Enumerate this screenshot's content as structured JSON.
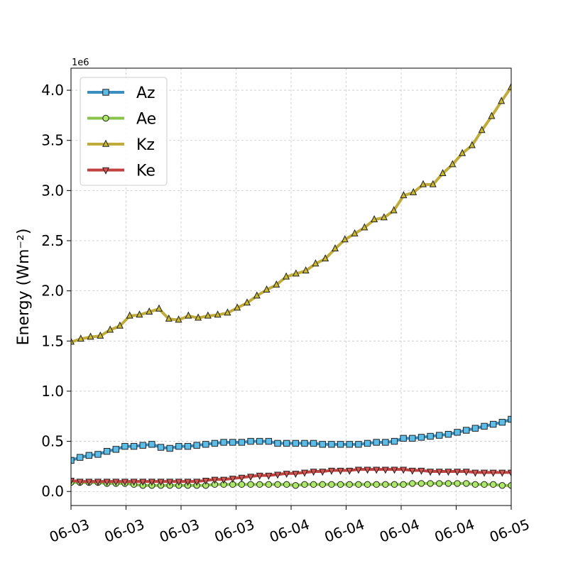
{
  "chart_data": {
    "type": "line",
    "ylabel": "Energy (Wm⁻²)",
    "y_offset_label": "1e6",
    "ylim": [
      -0.14,
      4.22
    ],
    "y_ticks": [
      0.0,
      0.5,
      1.0,
      1.5,
      2.0,
      2.5,
      3.0,
      3.5,
      4.0
    ],
    "y_tick_labels": [
      "0.0",
      "0.5",
      "1.0",
      "1.5",
      "2.0",
      "2.5",
      "3.0",
      "3.5",
      "4.0"
    ],
    "x_tick_labels": [
      "06-03",
      "06-03",
      "06-03",
      "06-03",
      "06-04",
      "06-04",
      "06-04",
      "06-04",
      "06-05"
    ],
    "grid": true,
    "legend_position": "top-left",
    "series": [
      {
        "name": "Az",
        "color": "#3b8fc0",
        "marker_fill": "#5bbde8",
        "marker": "square",
        "values": [
          0.31,
          0.34,
          0.36,
          0.37,
          0.4,
          0.42,
          0.45,
          0.45,
          0.46,
          0.47,
          0.44,
          0.43,
          0.45,
          0.45,
          0.46,
          0.47,
          0.48,
          0.49,
          0.49,
          0.49,
          0.5,
          0.5,
          0.5,
          0.48,
          0.48,
          0.48,
          0.48,
          0.48,
          0.47,
          0.47,
          0.47,
          0.47,
          0.47,
          0.48,
          0.49,
          0.49,
          0.5,
          0.53,
          0.53,
          0.54,
          0.55,
          0.56,
          0.57,
          0.59,
          0.61,
          0.63,
          0.65,
          0.67,
          0.69,
          0.72
        ]
      },
      {
        "name": "Ae",
        "color": "#8ac34a",
        "marker_fill": "#aee86a",
        "marker": "circle",
        "values": [
          0.09,
          0.09,
          0.09,
          0.09,
          0.08,
          0.08,
          0.08,
          0.07,
          0.06,
          0.06,
          0.06,
          0.06,
          0.06,
          0.06,
          0.06,
          0.06,
          0.07,
          0.07,
          0.07,
          0.07,
          0.07,
          0.07,
          0.07,
          0.07,
          0.07,
          0.06,
          0.07,
          0.07,
          0.07,
          0.07,
          0.07,
          0.07,
          0.07,
          0.07,
          0.07,
          0.07,
          0.07,
          0.07,
          0.08,
          0.08,
          0.08,
          0.08,
          0.08,
          0.08,
          0.08,
          0.07,
          0.07,
          0.07,
          0.06,
          0.06
        ]
      },
      {
        "name": "Kz",
        "color": "#c0ac3a",
        "marker_fill": "#c9b830",
        "marker": "triangle-up",
        "values": [
          1.49,
          1.52,
          1.54,
          1.55,
          1.61,
          1.65,
          1.75,
          1.76,
          1.79,
          1.82,
          1.72,
          1.71,
          1.75,
          1.73,
          1.75,
          1.76,
          1.78,
          1.83,
          1.88,
          1.95,
          2.01,
          2.06,
          2.14,
          2.17,
          2.2,
          2.27,
          2.32,
          2.42,
          2.51,
          2.57,
          2.63,
          2.71,
          2.73,
          2.8,
          2.95,
          2.98,
          3.06,
          3.06,
          3.17,
          3.26,
          3.37,
          3.45,
          3.6,
          3.74,
          3.89,
          4.03
        ]
      },
      {
        "name": "Ke",
        "color": "#c0413d",
        "marker_fill": "#d9534f",
        "marker": "triangle-down",
        "values": [
          0.11,
          0.1,
          0.1,
          0.1,
          0.1,
          0.1,
          0.1,
          0.1,
          0.1,
          0.1,
          0.1,
          0.1,
          0.1,
          0.1,
          0.1,
          0.11,
          0.12,
          0.12,
          0.13,
          0.14,
          0.15,
          0.16,
          0.16,
          0.17,
          0.18,
          0.18,
          0.19,
          0.2,
          0.2,
          0.21,
          0.21,
          0.21,
          0.22,
          0.22,
          0.22,
          0.22,
          0.22,
          0.22,
          0.21,
          0.21,
          0.2,
          0.2,
          0.2,
          0.2,
          0.2,
          0.19,
          0.19,
          0.19,
          0.19,
          0.19
        ]
      }
    ]
  }
}
